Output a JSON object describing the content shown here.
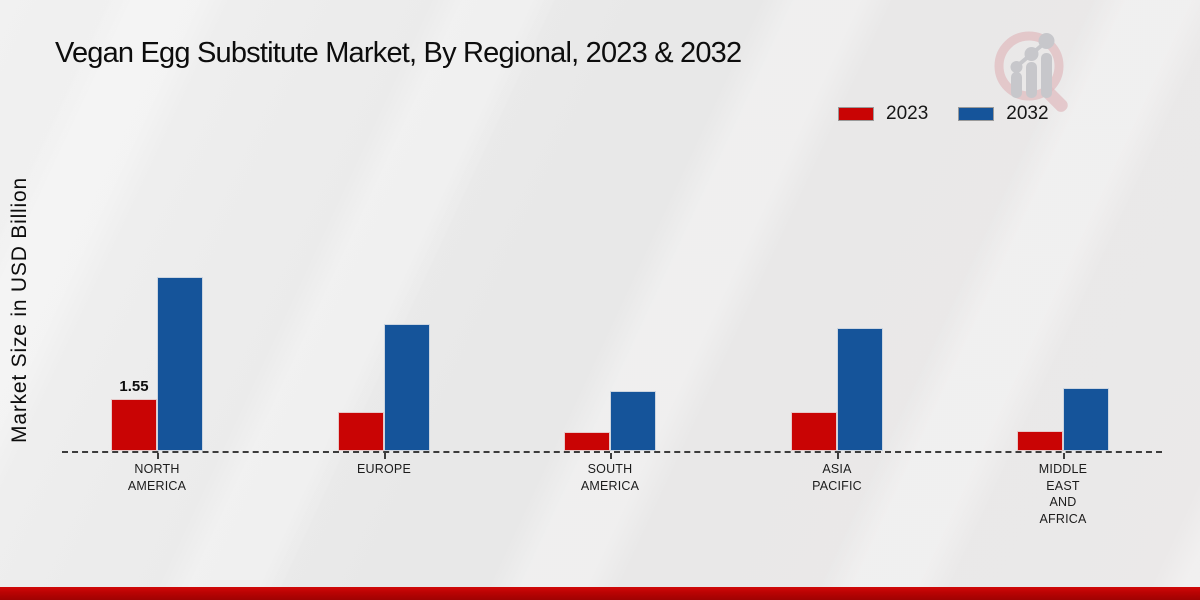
{
  "page": {
    "title": "Vegan Egg Substitute Market, By Regional, 2023 & 2032",
    "y_axis_label": "Market Size in USD Billion"
  },
  "legend": {
    "items": [
      {
        "label": "2023",
        "color": "#c90404"
      },
      {
        "label": "2032",
        "color": "#15549a"
      }
    ]
  },
  "icons": {
    "watermark": "magnifier-bar-chart-logo"
  },
  "colors": {
    "series_2023": "#c90404",
    "series_2032": "#15549a",
    "baseline": "#3c3c3c",
    "footer_bar": "#b90303",
    "background": "#e9e9e9"
  },
  "chart_data": {
    "type": "bar",
    "title": "Vegan Egg Substitute Market, By Regional, 2023 & 2032",
    "ylabel": "Market Size in USD Billion",
    "categories": [
      "NORTH AMERICA",
      "EUROPE",
      "SOUTH AMERICA",
      "ASIA PACIFIC",
      "MIDDLE EAST AND AFRICA"
    ],
    "category_lines": [
      [
        "NORTH",
        "AMERICA"
      ],
      [
        "EUROPE"
      ],
      [
        "SOUTH",
        "AMERICA"
      ],
      [
        "ASIA",
        "PACIFIC"
      ],
      [
        "MIDDLE",
        "EAST",
        "AND",
        "AFRICA"
      ]
    ],
    "series": [
      {
        "name": "2023",
        "color": "#c90404",
        "values": [
          1.55,
          1.17,
          0.58,
          1.15,
          0.59
        ]
      },
      {
        "name": "2032",
        "color": "#15549a",
        "values": [
          5.18,
          3.78,
          1.8,
          3.67,
          1.87
        ]
      }
    ],
    "annotations": [
      {
        "category_index": 0,
        "series_index": 0,
        "text": "1.55"
      }
    ],
    "ylim": [
      0,
      6
    ],
    "grid": false,
    "legend_position": "top-right",
    "baseline_style": "dashed"
  }
}
